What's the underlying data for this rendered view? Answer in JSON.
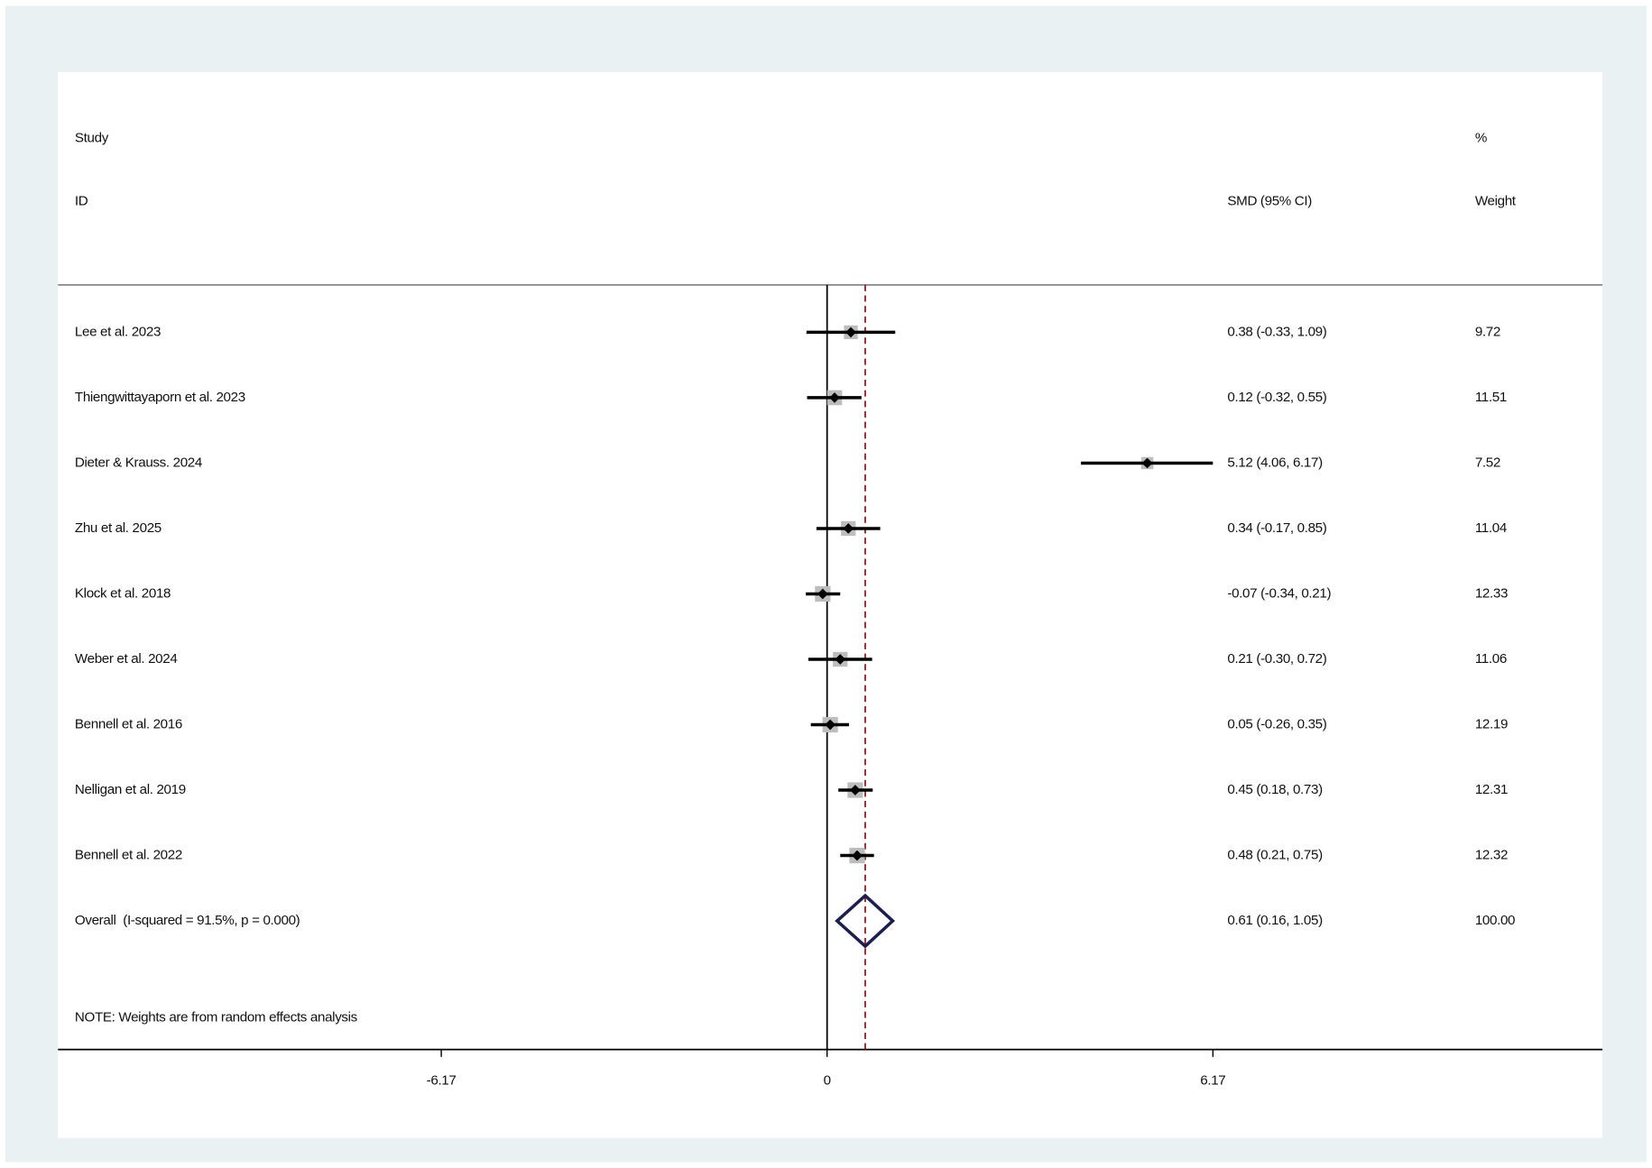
{
  "chart_data": {
    "type": "forest",
    "header": {
      "study": "Study",
      "id": "ID",
      "estimate": "SMD (95% CI)",
      "weight_top": "%",
      "weight": "Weight"
    },
    "categories": [
      "Lee et al. 2023",
      "Thiengwittayaporn et al. 2023",
      "Dieter & Krauss. 2024",
      "Zhu et al. 2025",
      "Klock et al. 2018",
      "Weber et al. 2024",
      "Bennell et al. 2016",
      "Nelligan et al. 2019",
      "Bennell et al. 2022"
    ],
    "values": [
      0.38,
      0.12,
      5.12,
      0.34,
      -0.07,
      0.21,
      0.05,
      0.45,
      0.48
    ],
    "lower": [
      -0.33,
      -0.32,
      4.06,
      -0.17,
      -0.34,
      -0.3,
      -0.26,
      0.18,
      0.21
    ],
    "upper": [
      1.09,
      0.55,
      6.17,
      0.85,
      0.21,
      0.72,
      0.35,
      0.73,
      0.75
    ],
    "ci_labels": [
      "0.38 (-0.33, 1.09)",
      "0.12 (-0.32, 0.55)",
      "5.12 (4.06, 6.17)",
      "0.34 (-0.17, 0.85)",
      "-0.07 (-0.34, 0.21)",
      "0.21 (-0.30, 0.72)",
      "0.05 (-0.26, 0.35)",
      "0.45 (0.18, 0.73)",
      "0.48 (0.21, 0.75)"
    ],
    "weights": [
      9.72,
      11.51,
      7.52,
      11.04,
      12.33,
      11.06,
      12.19,
      12.31,
      12.32
    ],
    "overall": {
      "label": "Overall  (I-squared = 91.5%, p = 0.000)",
      "value": 0.61,
      "lower": 0.16,
      "upper": 1.05,
      "ci_label": "0.61 (0.16, 1.05)",
      "weight": 100,
      "weight_label": "100.00"
    },
    "note": "NOTE: Weights are from random effects analysis",
    "xlim": [
      -12.3,
      12.4
    ],
    "xticks": [
      -6.17,
      0,
      6.17
    ],
    "colors": {
      "box": "#bdbdbd",
      "point": "#000000",
      "ci": "#000000",
      "diamond": "#1b1e4e",
      "overall_line": "#8b1a1a"
    }
  }
}
